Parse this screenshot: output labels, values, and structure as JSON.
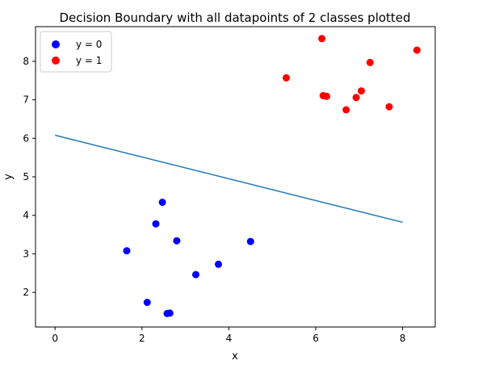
{
  "chart_data": {
    "type": "scatter",
    "title": "Decision Boundary with all datapoints of 2 classes plotted",
    "xlabel": "x",
    "ylabel": "y",
    "xlim": [
      -0.45,
      8.75
    ],
    "ylim": [
      1.1,
      8.9
    ],
    "xticks": [
      0,
      2,
      4,
      6,
      8
    ],
    "yticks": [
      2,
      3,
      4,
      5,
      6,
      7,
      8
    ],
    "grid": false,
    "legend_position": "top-left",
    "series": [
      {
        "name": "y = 0",
        "color": "#0000ff",
        "points": [
          {
            "x": 1.65,
            "y": 3.08
          },
          {
            "x": 2.12,
            "y": 1.74
          },
          {
            "x": 2.32,
            "y": 3.78
          },
          {
            "x": 2.47,
            "y": 4.34
          },
          {
            "x": 2.58,
            "y": 1.45
          },
          {
            "x": 2.64,
            "y": 1.46
          },
          {
            "x": 2.8,
            "y": 3.34
          },
          {
            "x": 3.24,
            "y": 2.46
          },
          {
            "x": 3.76,
            "y": 2.73
          },
          {
            "x": 4.5,
            "y": 3.32
          }
        ]
      },
      {
        "name": "y = 1",
        "color": "#ff0000",
        "points": [
          {
            "x": 5.32,
            "y": 7.57
          },
          {
            "x": 6.14,
            "y": 8.59
          },
          {
            "x": 6.17,
            "y": 7.11
          },
          {
            "x": 6.25,
            "y": 7.09
          },
          {
            "x": 6.7,
            "y": 6.74
          },
          {
            "x": 6.93,
            "y": 7.06
          },
          {
            "x": 7.05,
            "y": 7.23
          },
          {
            "x": 7.25,
            "y": 7.97
          },
          {
            "x": 7.69,
            "y": 6.82
          },
          {
            "x": 8.33,
            "y": 8.29
          }
        ]
      }
    ],
    "lines": [
      {
        "color": "#1f77b4",
        "points": [
          {
            "x": 0,
            "y": 6.08
          },
          {
            "x": 8,
            "y": 3.82
          }
        ]
      }
    ]
  }
}
